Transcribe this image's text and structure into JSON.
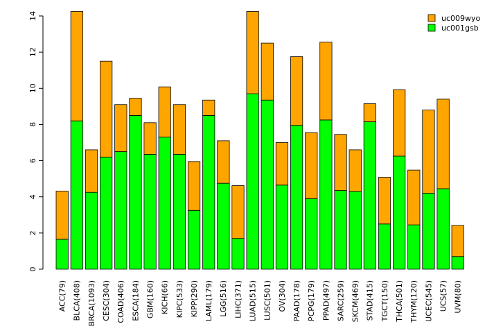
{
  "chart_data": {
    "type": "bar",
    "stacked": true,
    "categories": [
      "ACC(79)",
      "BLCA(408)",
      "BRCA(1093)",
      "CESC(304)",
      "COAD(406)",
      "ESCA(184)",
      "GBM(160)",
      "KICH(66)",
      "KIPC(533)",
      "KIPP(290)",
      "LAML(179)",
      "LGG(516)",
      "LIHC(371)",
      "LUAD(515)",
      "LUSC(501)",
      "OV(304)",
      "PAAD(178)",
      "PCPG(179)",
      "PPAD(497)",
      "SARC(259)",
      "SKCM(469)",
      "STAD(415)",
      "TGCT(150)",
      "THCA(501)",
      "THYM(120)",
      "UCEC(545)",
      "UCS(57)",
      "UVM(80)"
    ],
    "series": [
      {
        "name": "uc001gsb",
        "color": "#00ff00",
        "values": [
          1.65,
          8.2,
          4.25,
          6.2,
          6.5,
          8.5,
          6.35,
          7.3,
          6.35,
          3.25,
          8.5,
          4.75,
          1.7,
          9.7,
          9.35,
          4.65,
          7.95,
          3.9,
          8.25,
          4.35,
          4.3,
          8.15,
          2.5,
          6.25,
          2.45,
          4.2,
          4.45,
          0.7
        ]
      },
      {
        "name": "uc009wyo",
        "color": "#ffa500",
        "values": [
          2.67,
          6.05,
          2.35,
          5.3,
          2.6,
          0.95,
          1.75,
          2.78,
          2.75,
          2.7,
          0.85,
          2.35,
          2.92,
          4.55,
          3.15,
          2.35,
          3.8,
          3.65,
          4.3,
          3.1,
          2.3,
          1.0,
          2.58,
          3.67,
          3.03,
          4.6,
          4.95,
          1.72
        ]
      }
    ],
    "ylim": [
      0,
      14
    ],
    "yticks": [
      0,
      2,
      4,
      6,
      8,
      10,
      12,
      14
    ],
    "legend": {
      "position": "top-right",
      "order": [
        "uc009wyo",
        "uc001gsb"
      ]
    },
    "title": "",
    "xlabel": "",
    "ylabel": ""
  }
}
